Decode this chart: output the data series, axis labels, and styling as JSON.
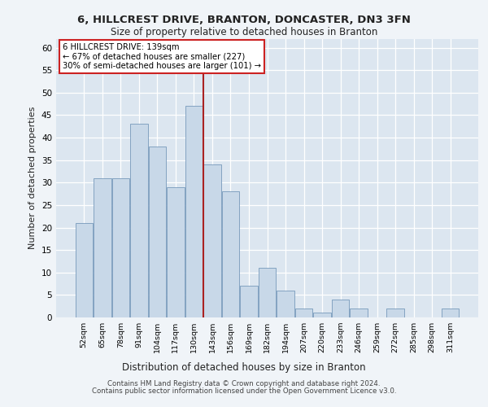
{
  "title_line1": "6, HILLCREST DRIVE, BRANTON, DONCASTER, DN3 3FN",
  "title_line2": "Size of property relative to detached houses in Branton",
  "xlabel": "Distribution of detached houses by size in Branton",
  "ylabel": "Number of detached properties",
  "categories": [
    "52sqm",
    "65sqm",
    "78sqm",
    "91sqm",
    "104sqm",
    "117sqm",
    "130sqm",
    "143sqm",
    "156sqm",
    "169sqm",
    "182sqm",
    "194sqm",
    "207sqm",
    "220sqm",
    "233sqm",
    "246sqm",
    "259sqm",
    "272sqm",
    "285sqm",
    "298sqm",
    "311sqm"
  ],
  "values": [
    21,
    31,
    31,
    43,
    38,
    29,
    47,
    34,
    28,
    7,
    11,
    6,
    2,
    1,
    4,
    2,
    0,
    2,
    0,
    0,
    2
  ],
  "bar_color": "#c8d8e8",
  "bar_edge_color": "#7799bb",
  "vline_color": "#aa2222",
  "vline_index": 6,
  "ylim": [
    0,
    62
  ],
  "yticks": [
    0,
    5,
    10,
    15,
    20,
    25,
    30,
    35,
    40,
    45,
    50,
    55,
    60
  ],
  "annotation_box_text": [
    "6 HILLCREST DRIVE: 139sqm",
    "← 67% of detached houses are smaller (227)",
    "30% of semi-detached houses are larger (101) →"
  ],
  "annotation_box_color": "#ffffff",
  "annotation_box_edgecolor": "#cc2222",
  "bg_color": "#dce6f0",
  "fig_bg_color": "#f0f4f8",
  "footer_line1": "Contains HM Land Registry data © Crown copyright and database right 2024.",
  "footer_line2": "Contains public sector information licensed under the Open Government Licence v3.0."
}
